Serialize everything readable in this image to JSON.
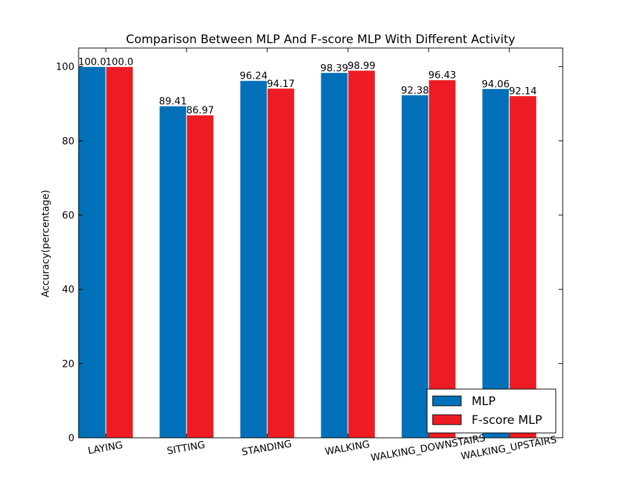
{
  "chart_data": {
    "type": "bar",
    "title": "Comparison Between MLP And F-score MLP With Different Activity",
    "xlabel": "",
    "ylabel": "Accuracy(percentage)",
    "ylim": [
      0,
      105
    ],
    "yticks": [
      0,
      20,
      40,
      60,
      80,
      100
    ],
    "categories": [
      "LAYING",
      "SITTING",
      "STANDING",
      "WALKING",
      "WALKING_DOWNSTAIRS",
      "WALKING_UPSTAIRS"
    ],
    "series": [
      {
        "name": "MLP",
        "color": "#0070b8",
        "values": [
          100.0,
          89.41,
          96.24,
          98.39,
          92.38,
          94.06
        ],
        "labels": [
          "100.0",
          "89.41",
          "96.24",
          "98.39",
          "92.38",
          "94.06"
        ]
      },
      {
        "name": "F-score MLP",
        "color": "#ed1c24",
        "values": [
          100.0,
          86.97,
          94.17,
          98.99,
          96.43,
          92.14
        ],
        "labels": [
          "100.0",
          "86.97",
          "94.17",
          "98.99",
          "96.43",
          "92.14"
        ]
      }
    ],
    "legend_position": "lower-right",
    "grid": false
  }
}
